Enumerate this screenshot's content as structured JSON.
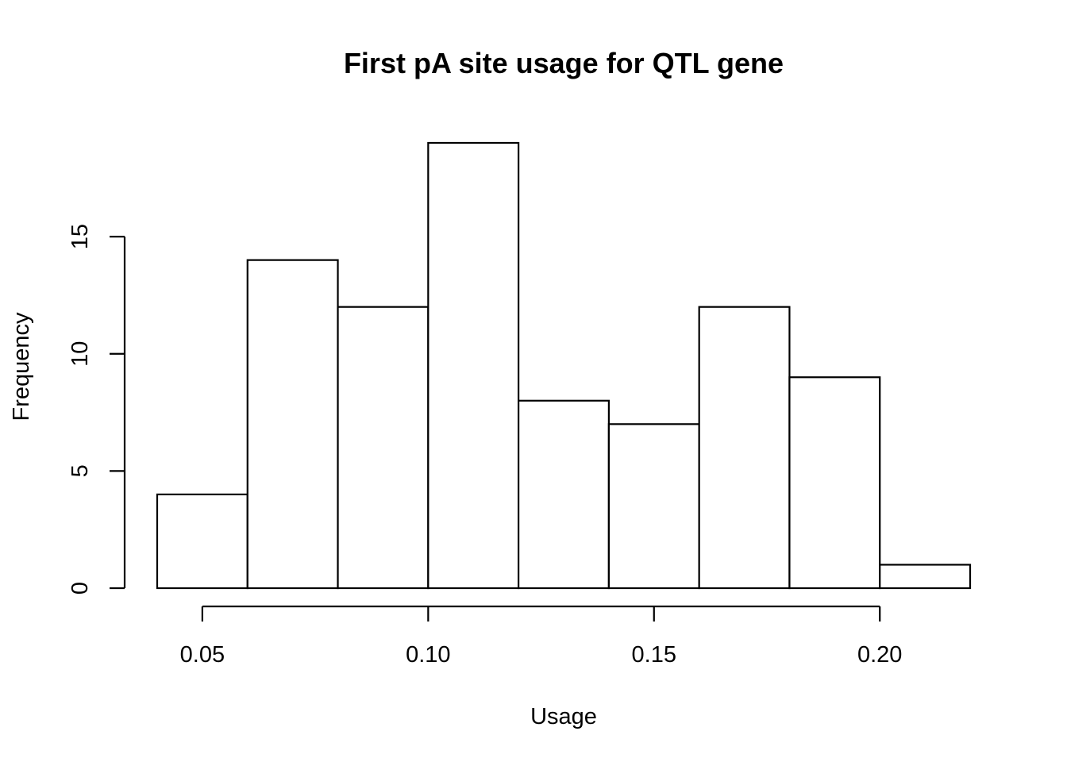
{
  "chart_data": {
    "type": "bar",
    "title": "First pA site usage for QTL gene",
    "xlabel": "Usage",
    "ylabel": "Frequency",
    "bins": [
      [
        0.04,
        0.06
      ],
      [
        0.06,
        0.08
      ],
      [
        0.08,
        0.1
      ],
      [
        0.1,
        0.12
      ],
      [
        0.12,
        0.14
      ],
      [
        0.14,
        0.16
      ],
      [
        0.16,
        0.18
      ],
      [
        0.18,
        0.2
      ],
      [
        0.2,
        0.22
      ]
    ],
    "values": [
      4,
      14,
      12,
      19,
      8,
      7,
      12,
      9,
      1
    ],
    "xlim": [
      0.04,
      0.22
    ],
    "ylim": [
      0,
      19
    ],
    "x_ticks": [
      0.05,
      0.1,
      0.15,
      0.2
    ],
    "x_tick_labels": [
      "0.05",
      "0.10",
      "0.15",
      "0.20"
    ],
    "y_ticks": [
      0,
      5,
      10,
      15
    ],
    "y_tick_labels": [
      "0",
      "5",
      "10",
      "15"
    ],
    "grid": false,
    "colors": {
      "bar_fill": "#ffffff",
      "bar_stroke": "#000000",
      "text": "#000000"
    }
  }
}
